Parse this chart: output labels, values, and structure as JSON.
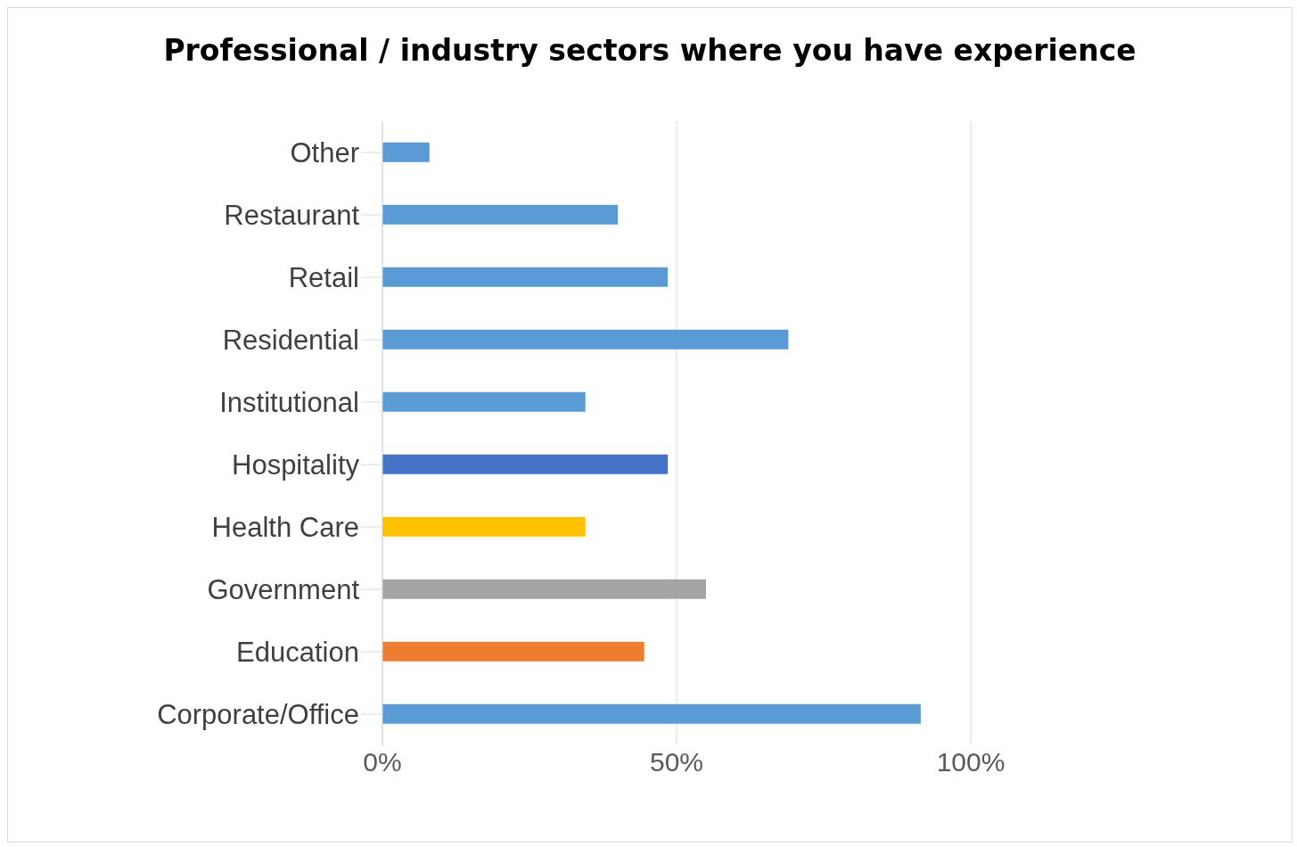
{
  "chart_data": {
    "type": "bar",
    "orientation": "horizontal",
    "title": "Professional / industry sectors where you have experience",
    "categories": [
      "Other",
      "Restaurant",
      "Retail",
      "Residential",
      "Institutional",
      "Hospitality",
      "Health Care",
      "Government",
      "Education",
      "Corporate/Office"
    ],
    "values": [
      8,
      40,
      48.5,
      69,
      34.5,
      48.5,
      34.5,
      55,
      44.5,
      91.5
    ],
    "colors": [
      "#5b9bd5",
      "#5b9bd5",
      "#5b9bd5",
      "#5b9bd5",
      "#5b9bd5",
      "#4472c4",
      "#ffc000",
      "#a5a5a5",
      "#ed7d31",
      "#5b9bd5"
    ],
    "xlim": [
      0,
      100
    ],
    "xticks": [
      {
        "value": 0,
        "label": "0%"
      },
      {
        "value": 50,
        "label": "50%"
      },
      {
        "value": 100,
        "label": "100%"
      }
    ],
    "grid": "x",
    "legend": false
  }
}
